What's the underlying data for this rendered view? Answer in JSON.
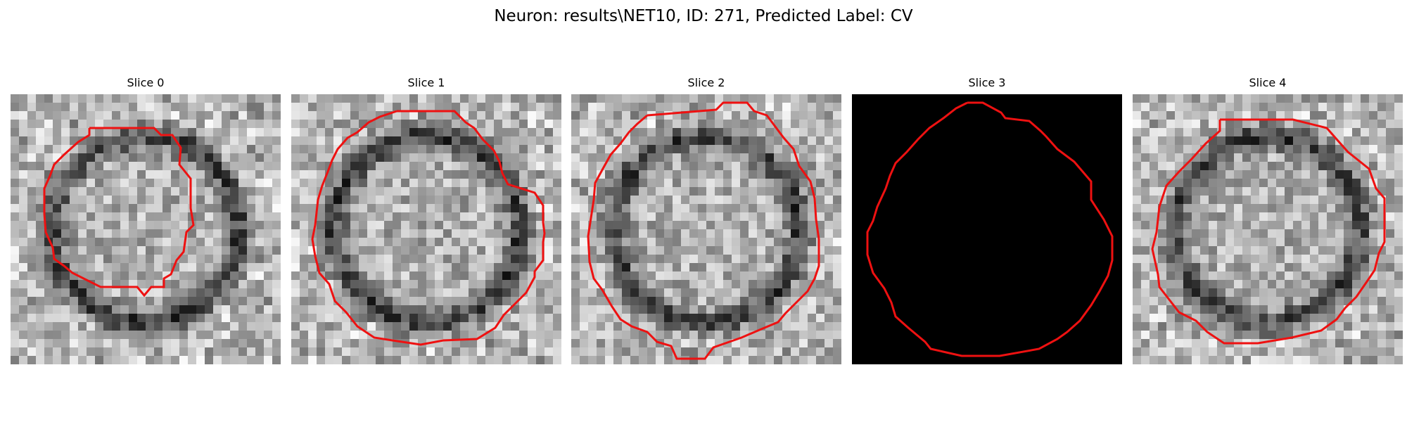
{
  "figure": {
    "title": "Neuron: results\\NET10, ID: 271, Predicted Label: CV"
  },
  "contour_color": "#ee1111",
  "colormap": "gray",
  "panels": [
    {
      "title": "Slice 0",
      "image_kind": "grayscale-texture",
      "seed": 11,
      "ring": true
    },
    {
      "title": "Slice 1",
      "image_kind": "grayscale-texture",
      "seed": 23,
      "ring": true
    },
    {
      "title": "Slice 2",
      "image_kind": "grayscale-texture",
      "seed": 37,
      "ring": true
    },
    {
      "title": "Slice 3",
      "image_kind": "blank-black",
      "seed": 0,
      "ring": false
    },
    {
      "title": "Slice 4",
      "image_kind": "grayscale-texture",
      "seed": 53,
      "ring": true
    }
  ]
}
